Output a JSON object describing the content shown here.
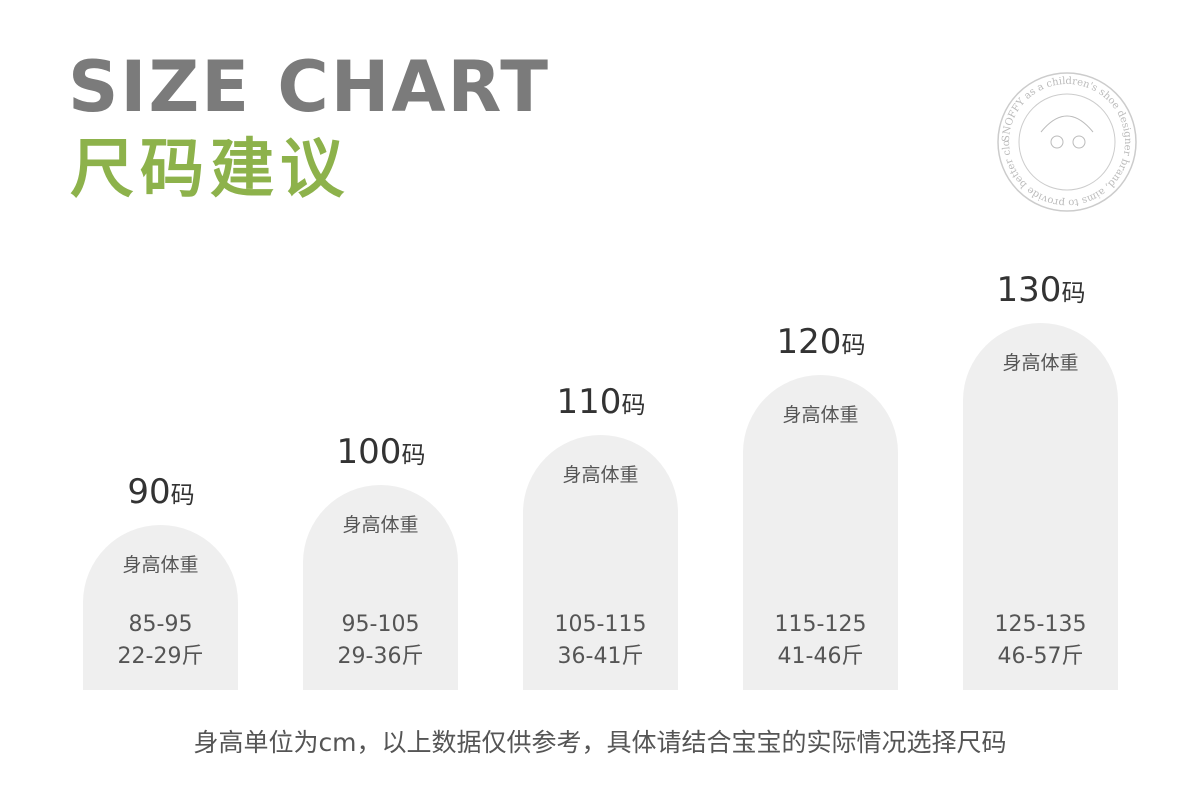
{
  "header": {
    "title": "SIZE CHART",
    "subtitle": "尺码建议"
  },
  "logo": {
    "text": "SNOFFY as a children's shoe designer brand, aims to provide better clothing"
  },
  "sizes": [
    {
      "size": "90",
      "unit": "码",
      "label": "身高体重",
      "height": "85-95",
      "weight": "22-29斤"
    },
    {
      "size": "100",
      "unit": "码",
      "label": "身高体重",
      "height": "95-105",
      "weight": "29-36斤"
    },
    {
      "size": "110",
      "unit": "码",
      "label": "身高体重",
      "height": "105-115",
      "weight": "36-41斤"
    },
    {
      "size": "120",
      "unit": "码",
      "label": "身高体重",
      "height": "115-125",
      "weight": "41-46斤"
    },
    {
      "size": "130",
      "unit": "码",
      "label": "身高体重",
      "height": "125-135",
      "weight": "46-57斤"
    }
  ],
  "footnote": "身高单位为cm，以上数据仅供参考，具体请结合宝宝的实际情况选择尺码"
}
